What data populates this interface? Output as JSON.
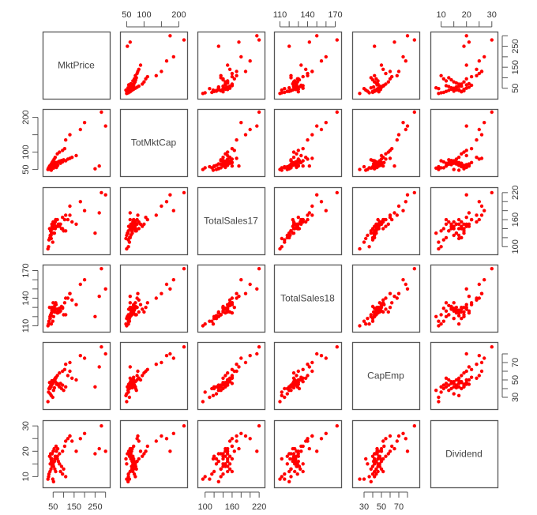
{
  "chart_data": {
    "type": "scatter",
    "title": "",
    "layout": "scatterplot-matrix",
    "marker_color": "#ff0000",
    "frame_color": "#555555",
    "variables": [
      "MktPrice",
      "TotMktCap",
      "TotalSales17",
      "TotalSales18",
      "CapEmp",
      "Dividend"
    ],
    "axes": {
      "MktPrice": {
        "range": [
          15,
          305
        ],
        "ticks": [
          50,
          150,
          250
        ],
        "minor_ticks": [
          50,
          100,
          150,
          200,
          250,
          300
        ],
        "side_top": false,
        "side_bottom": true,
        "side_right": true
      },
      "TotMktCap": {
        "range": [
          40,
          215
        ],
        "ticks": [
          50,
          100,
          200
        ],
        "minor_ticks": [
          50,
          100,
          150,
          200
        ],
        "side_top": true,
        "side_left": true
      },
      "TotalSales17": {
        "range": [
          90,
          225
        ],
        "ticks": [
          100,
          160,
          220
        ],
        "minor_ticks": [
          100,
          120,
          140,
          160,
          180,
          200,
          220
        ],
        "side_bottom": true,
        "side_right": true
      },
      "TotalSales18": {
        "range": [
          107,
          173
        ],
        "ticks": [
          110,
          140,
          170
        ],
        "minor_ticks": [
          110,
          120,
          130,
          140,
          150,
          160,
          170
        ],
        "side_top": true,
        "side_left": true
      },
      "CapEmp": {
        "range": [
          20,
          90
        ],
        "ticks": [
          30,
          50,
          70
        ],
        "minor_ticks": [
          30,
          40,
          50,
          60,
          70,
          80
        ],
        "side_bottom": true,
        "side_right": true
      },
      "Dividend": {
        "range": [
          7,
          31
        ],
        "ticks": [
          10,
          20,
          30
        ],
        "minor_ticks": [
          10,
          15,
          20,
          25,
          30
        ],
        "side_top": true,
        "side_left": true
      }
    },
    "observations": {
      "MktPrice": [
        280,
        300,
        200,
        180,
        130,
        110,
        105,
        95,
        80,
        70,
        60,
        55,
        50,
        45,
        40,
        35,
        30,
        28,
        25,
        45,
        50,
        55,
        60,
        70,
        75,
        80,
        90,
        100,
        120,
        130,
        140,
        160,
        250,
        270,
        35,
        40,
        42,
        48,
        52,
        58,
        62,
        66,
        38,
        33,
        44,
        56,
        64,
        72,
        85,
        95,
        110,
        48,
        52,
        36,
        41
      ],
      "TotMktCap": [
        215,
        175,
        185,
        165,
        150,
        135,
        110,
        105,
        100,
        95,
        85,
        80,
        75,
        70,
        65,
        60,
        55,
        55,
        50,
        62,
        64,
        66,
        68,
        70,
        72,
        74,
        76,
        78,
        80,
        82,
        85,
        90,
        52,
        60,
        58,
        62,
        66,
        68,
        64,
        70,
        60,
        56,
        55,
        60,
        62,
        66,
        70,
        62,
        68,
        72,
        75,
        58,
        54,
        50,
        48
      ],
      "TotalSales17": [
        220,
        215,
        180,
        200,
        190,
        170,
        160,
        165,
        150,
        145,
        140,
        150,
        155,
        145,
        135,
        120,
        115,
        100,
        95,
        140,
        145,
        150,
        155,
        160,
        150,
        145,
        140,
        135,
        160,
        170,
        155,
        150,
        130,
        175,
        120,
        125,
        130,
        140,
        150,
        155,
        160,
        145,
        135,
        140,
        150,
        130,
        160,
        145,
        150,
        140,
        135,
        110,
        130,
        125,
        118
      ],
      "TotalSales18": [
        172,
        150,
        160,
        155,
        145,
        140,
        135,
        130,
        125,
        128,
        125,
        130,
        135,
        128,
        122,
        120,
        115,
        112,
        110,
        130,
        128,
        126,
        125,
        124,
        127,
        129,
        131,
        122,
        140,
        145,
        138,
        133,
        120,
        142,
        118,
        121,
        124,
        126,
        129,
        132,
        135,
        128,
        122,
        130,
        127,
        125,
        133,
        124,
        126,
        129,
        122,
        115,
        120,
        118,
        112
      ],
      "CapEmp": [
        88,
        80,
        75,
        78,
        70,
        68,
        62,
        60,
        58,
        55,
        52,
        50,
        48,
        46,
        44,
        42,
        40,
        36,
        25,
        45,
        47,
        50,
        48,
        46,
        44,
        42,
        40,
        38,
        55,
        60,
        52,
        50,
        42,
        65,
        40,
        42,
        44,
        46,
        48,
        50,
        52,
        45,
        43,
        47,
        49,
        41,
        53,
        45,
        46,
        44,
        42,
        30,
        38,
        34,
        32
      ],
      "Dividend": [
        30,
        20,
        27,
        25,
        26,
        24,
        22,
        20,
        19,
        18,
        17,
        16,
        15,
        14,
        13,
        12,
        11,
        10,
        9,
        19,
        20,
        21,
        18,
        17,
        16,
        15,
        14,
        13,
        25,
        26,
        24,
        20,
        19,
        21,
        18,
        17,
        16,
        15,
        14,
        13,
        12,
        20,
        19,
        18,
        17,
        16,
        22,
        21,
        12,
        11,
        10,
        9,
        8,
        15,
        17
      ]
    },
    "n_points": 55
  }
}
